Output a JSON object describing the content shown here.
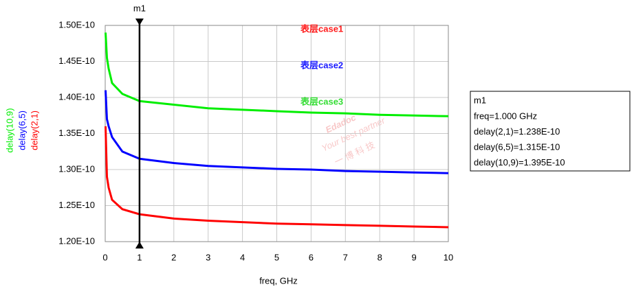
{
  "chart_data": {
    "type": "line",
    "x_label": "freq, GHz",
    "x": [
      0.01,
      0.05,
      0.1,
      0.2,
      0.5,
      1,
      2,
      3,
      4,
      5,
      6,
      7,
      8,
      9,
      10
    ],
    "series": [
      {
        "name": "delay(2,1)",
        "color": "#ff0000",
        "values": [
          1.36e-10,
          1.29e-10,
          1.275e-10,
          1.258e-10,
          1.245e-10,
          1.238e-10,
          1.232e-10,
          1.229e-10,
          1.227e-10,
          1.225e-10,
          1.224e-10,
          1.223e-10,
          1.222e-10,
          1.221e-10,
          1.22e-10
        ]
      },
      {
        "name": "delay(6,5)",
        "color": "#0000ff",
        "values": [
          1.41e-10,
          1.37e-10,
          1.36e-10,
          1.345e-10,
          1.325e-10,
          1.315e-10,
          1.309e-10,
          1.305e-10,
          1.303e-10,
          1.301e-10,
          1.3e-10,
          1.298e-10,
          1.297e-10,
          1.296e-10,
          1.295e-10
        ]
      },
      {
        "name": "delay(10,9)",
        "color": "#00ee00",
        "values": [
          1.49e-10,
          1.455e-10,
          1.44e-10,
          1.42e-10,
          1.405e-10,
          1.395e-10,
          1.39e-10,
          1.385e-10,
          1.383e-10,
          1.381e-10,
          1.379e-10,
          1.378e-10,
          1.376e-10,
          1.375e-10,
          1.374e-10
        ]
      }
    ],
    "xlim": [
      0,
      10
    ],
    "xticks": [
      0,
      1,
      2,
      3,
      4,
      5,
      6,
      7,
      8,
      9,
      10
    ],
    "ylim": [
      1.2e-10,
      1.5e-10
    ],
    "yticks": [
      {
        "value": 1.2e-10,
        "label": "1.20E-10"
      },
      {
        "value": 1.25e-10,
        "label": "1.25E-10"
      },
      {
        "value": 1.3e-10,
        "label": "1.30E-10"
      },
      {
        "value": 1.35e-10,
        "label": "1.35E-10"
      },
      {
        "value": 1.4e-10,
        "label": "1.40E-10"
      },
      {
        "value": 1.45e-10,
        "label": "1.45E-10"
      },
      {
        "value": 1.5e-10,
        "label": "1.50E-10"
      }
    ],
    "grid": true,
    "annotations": [
      {
        "text": "表层case1",
        "color": "#ff1a1a"
      },
      {
        "text": "表层case2",
        "color": "#1a1aff"
      },
      {
        "text": "表层case3",
        "color": "#33dd33"
      }
    ],
    "marker": {
      "name": "m1",
      "x": 1,
      "readout": [
        "freq=1.000 GHz",
        "delay(2,1)=1.238E-10",
        "delay(6,5)=1.315E-10",
        "delay(10,9)=1.395E-10"
      ]
    },
    "watermark": [
      "Edadoc",
      "Your best partner",
      "一 博 科 技"
    ]
  }
}
